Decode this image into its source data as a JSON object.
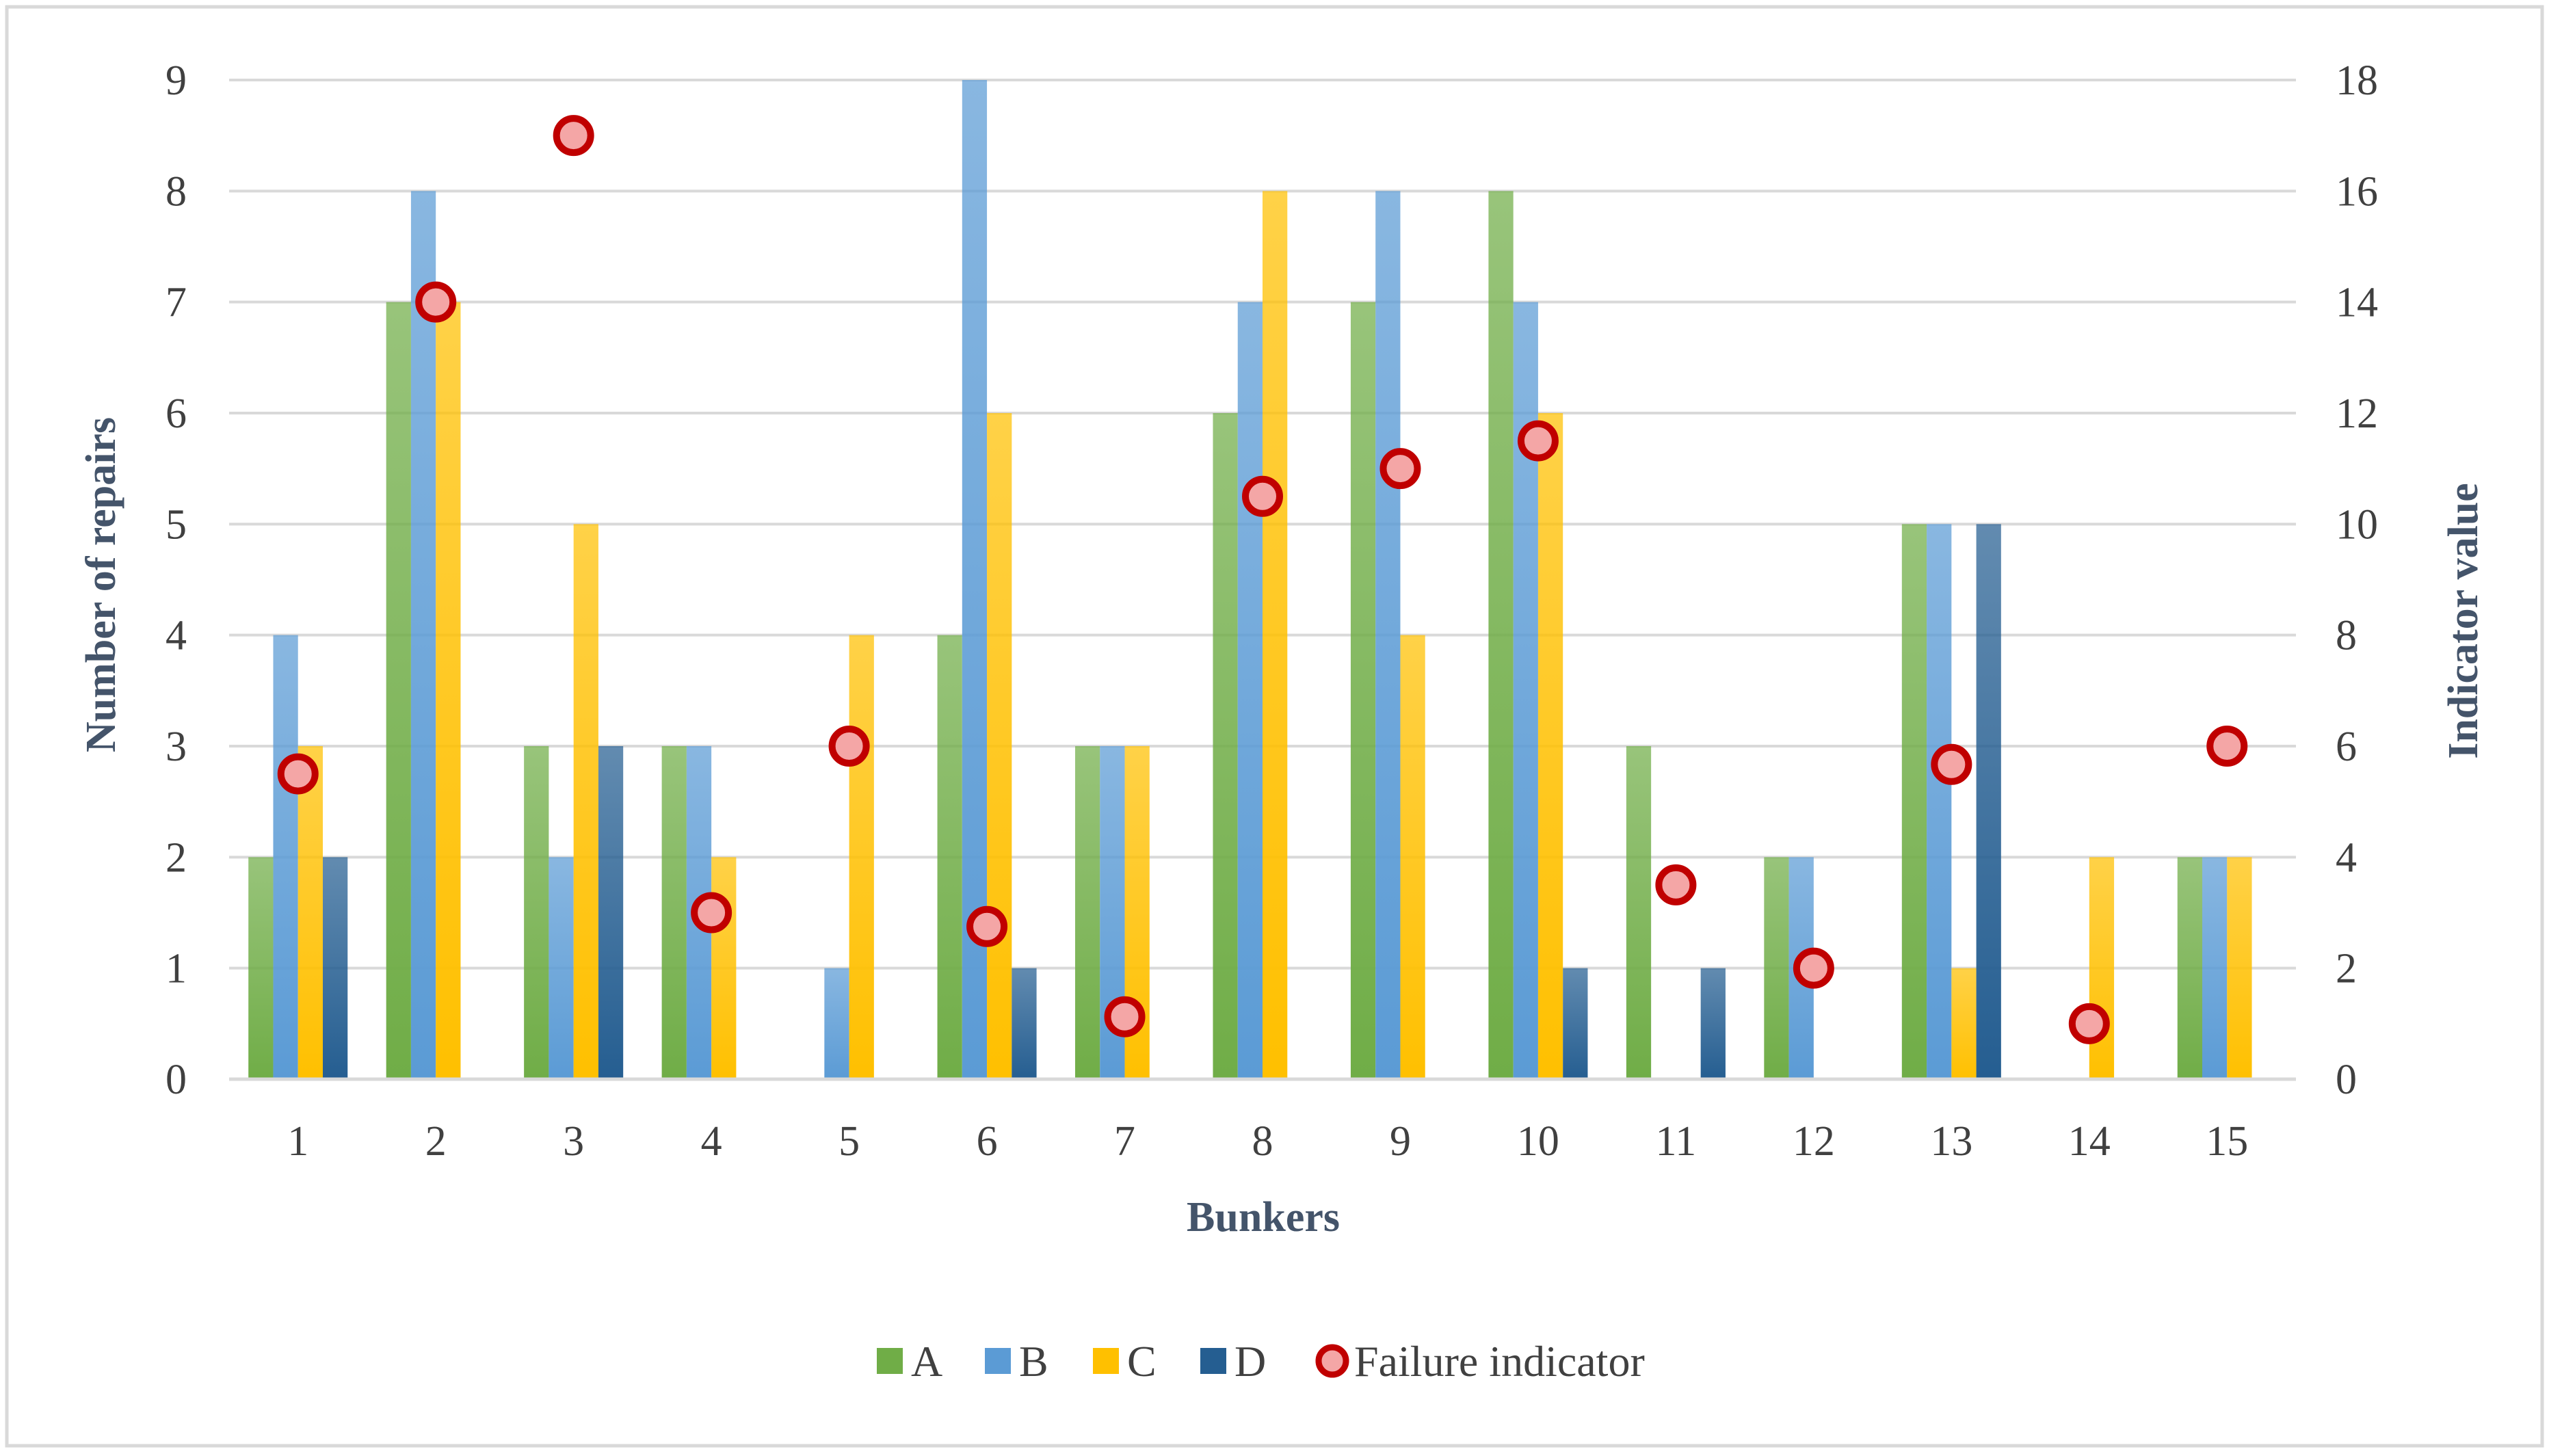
{
  "chart_data": {
    "type": "bar",
    "title": "",
    "xlabel": "Bunkers",
    "ylabel": "Number of repairs",
    "y2label": "Indicator value",
    "categories": [
      "1",
      "2",
      "3",
      "4",
      "5",
      "6",
      "7",
      "8",
      "9",
      "10",
      "11",
      "12",
      "13",
      "14",
      "15"
    ],
    "ylim": [
      0,
      9
    ],
    "yticks": [
      0,
      1,
      2,
      3,
      4,
      5,
      6,
      7,
      8,
      9
    ],
    "y2lim": [
      0,
      18
    ],
    "y2ticks": [
      0,
      2,
      4,
      6,
      8,
      10,
      12,
      14,
      16,
      18
    ],
    "grid": true,
    "legend_position": "bottom",
    "series": [
      {
        "name": "A",
        "kind": "bar",
        "axis": "left",
        "color": "#70AD47",
        "values": [
          2,
          7,
          3,
          3,
          0,
          4,
          3,
          6,
          7,
          8,
          3,
          2,
          5,
          0,
          2
        ]
      },
      {
        "name": "B",
        "kind": "bar",
        "axis": "left",
        "color": "#5B9BD5",
        "values": [
          4,
          8,
          2,
          3,
          1,
          9,
          3,
          7,
          8,
          7,
          0,
          2,
          5,
          0,
          2
        ]
      },
      {
        "name": "C",
        "kind": "bar",
        "axis": "left",
        "color": "#FFC000",
        "values": [
          3,
          7,
          5,
          2,
          4,
          6,
          3,
          8,
          4,
          6,
          0,
          0,
          1,
          2,
          2
        ]
      },
      {
        "name": "D",
        "kind": "bar",
        "axis": "left",
        "color": "#255E91",
        "values": [
          2,
          0,
          3,
          0,
          0,
          1,
          0,
          0,
          0,
          1,
          1,
          0,
          5,
          0,
          0
        ]
      },
      {
        "name": "Failure indicator",
        "kind": "scatter",
        "axis": "right",
        "color": "#C00000",
        "fill": "#F4A6A6",
        "values": [
          5.5,
          14,
          17,
          3,
          6,
          2.75,
          1.125,
          10.5,
          11,
          11.5,
          3.5,
          2,
          5.67,
          1,
          6
        ]
      }
    ]
  }
}
